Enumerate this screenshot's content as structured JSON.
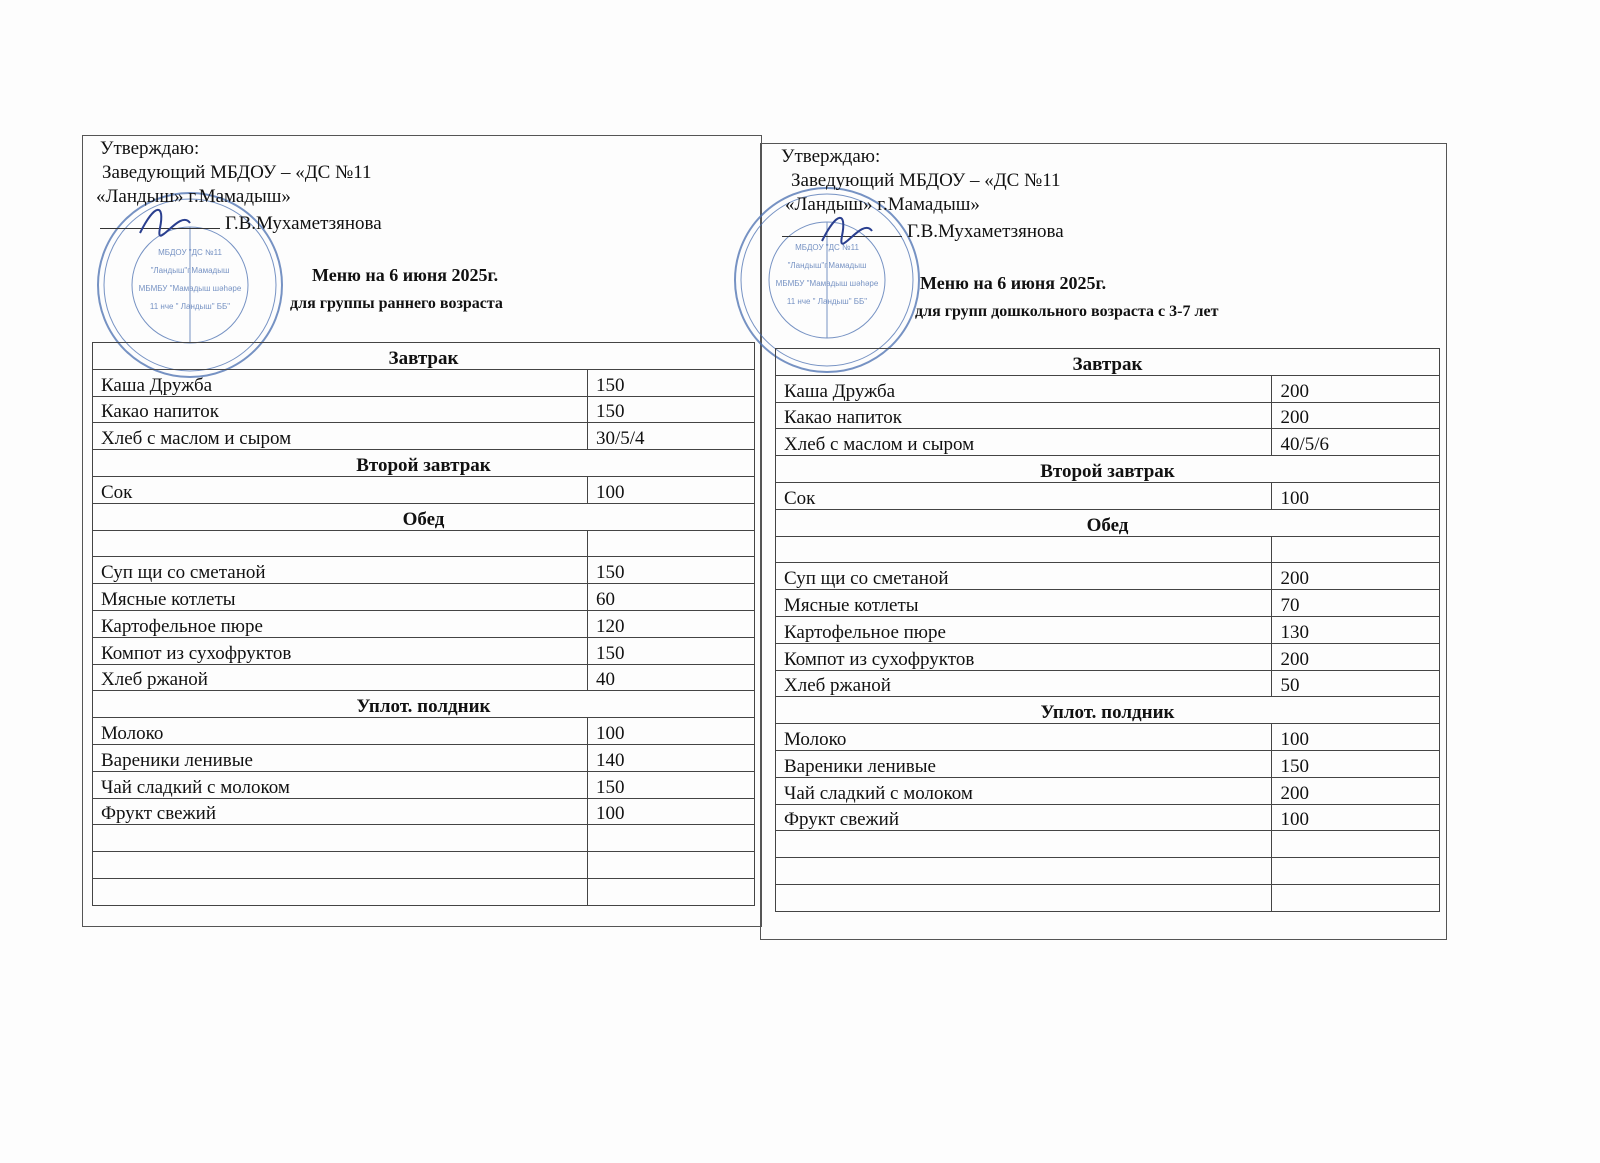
{
  "colors": {
    "stamp": "#4a6fb0"
  },
  "menus": [
    {
      "approve": "Утверждаю:",
      "position": "Заведующий МБДОУ – «ДС №11",
      "org": "«Ландыш» г.Мамадыш»",
      "signer": "Г.В.Мухаметзянова",
      "title": "Меню на 6 июня 2025г.",
      "group": "для группы раннего возраста",
      "stamp": {
        "center_line1": "МБДОУ \"ДС №11",
        "center_line2": "\"Ландыш\"г.Мамадыш",
        "center_line3": "МБМБУ \"Мамадыш шәһәре",
        "center_line4": "11 нче \" Ландыш\" ББ\""
      },
      "rows": [
        {
          "section": "Завтрак"
        },
        {
          "name": "Каша Дружба",
          "value": "150"
        },
        {
          "name": "Какао напиток",
          "value": "150"
        },
        {
          "name": "Хлеб с маслом и сыром",
          "value": "30/5/4"
        },
        {
          "section": "Второй завтрак"
        },
        {
          "name": "Сок",
          "value": "100"
        },
        {
          "section": "Обед"
        },
        {
          "name": "",
          "value": ""
        },
        {
          "name": "Суп щи со сметаной",
          "value": "150"
        },
        {
          "name": "Мясные котлеты",
          "value": "60"
        },
        {
          "name": "Картофельное пюре",
          "value": "120"
        },
        {
          "name": "Компот из сухофруктов",
          "value": "150"
        },
        {
          "name": "Хлеб ржаной",
          "value": "40"
        },
        {
          "section": "Уплот. полдник"
        },
        {
          "name": "Молоко",
          "value": "100"
        },
        {
          "name": "Вареники ленивые",
          "value": "140"
        },
        {
          "name": "Чай сладкий с молоком",
          "value": "150"
        },
        {
          "name": "Фрукт свежий",
          "value": "100"
        },
        {
          "name": "",
          "value": ""
        },
        {
          "name": "",
          "value": ""
        },
        {
          "name": "",
          "value": ""
        }
      ]
    },
    {
      "approve": "Утверждаю:",
      "position": "Заведующий МБДОУ – «ДС №11",
      "org": "«Ландыш» г.Мамадыш»",
      "signer": "Г.В.Мухаметзянова",
      "title": "Меню на 6 июня  2025г.",
      "group": "для групп дошкольного возраста с 3-7 лет",
      "stamp": {
        "center_line1": "МБДОУ \"ДС №11",
        "center_line2": "\"Ландыш\"г.Мамадыш",
        "center_line3": "МБМБУ \"Мамадыш шәһәре",
        "center_line4": "11 нче \" Ландыш\" ББ\""
      },
      "rows": [
        {
          "section": "Завтрак"
        },
        {
          "name": "Каша Дружба",
          "value": "200"
        },
        {
          "name": "Какао напиток",
          "value": "200"
        },
        {
          "name": "Хлеб с маслом и сыром",
          "value": "40/5/6"
        },
        {
          "section": "Второй завтрак"
        },
        {
          "name": "Сок",
          "value": "100"
        },
        {
          "section": "Обед"
        },
        {
          "name": "",
          "value": ""
        },
        {
          "name": "Суп щи со сметаной",
          "value": "200"
        },
        {
          "name": "Мясные котлеты",
          "value": "70"
        },
        {
          "name": "Картофельное пюре",
          "value": "130"
        },
        {
          "name": "Компот из сухофруктов",
          "value": "200"
        },
        {
          "name": "Хлеб ржаной",
          "value": "50"
        },
        {
          "section": "Уплот. полдник"
        },
        {
          "name": "Молоко",
          "value": "100"
        },
        {
          "name": "Вареники ленивые",
          "value": "150"
        },
        {
          "name": "Чай сладкий с молоком",
          "value": "200"
        },
        {
          "name": "Фрукт свежий",
          "value": "100"
        },
        {
          "name": "",
          "value": ""
        },
        {
          "name": "",
          "value": ""
        },
        {
          "name": "",
          "value": ""
        }
      ]
    }
  ]
}
